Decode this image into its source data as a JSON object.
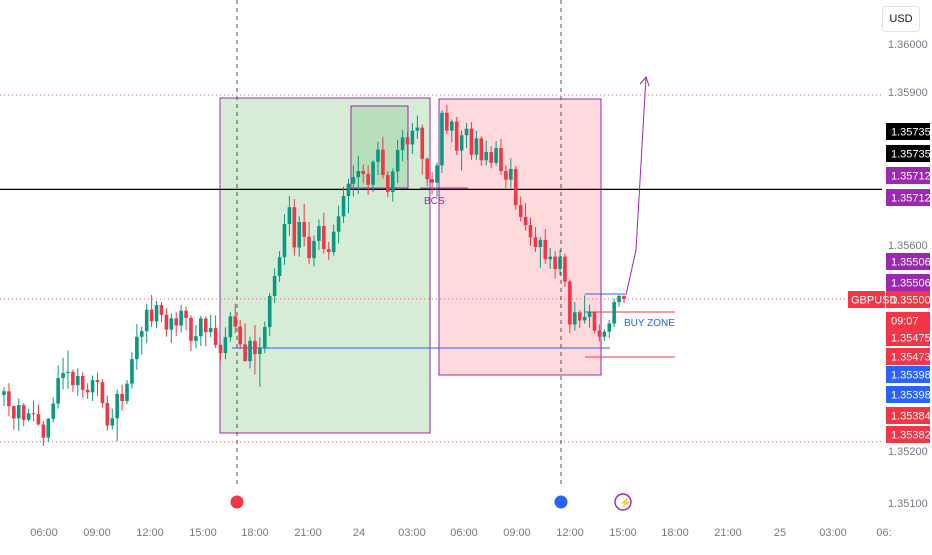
{
  "currency": "USD",
  "chart_data": {
    "type": "candlestick",
    "symbol": "GBPUSD",
    "ylim": [
      1.3507,
      1.3605
    ],
    "price_ticks": [
      "1.36000",
      "1.35900",
      "1.35600",
      "1.35200",
      "1.35100"
    ],
    "time_ticks": [
      "06:00",
      "09:00",
      "12:00",
      "15:00",
      "18:00",
      "21:00",
      "24",
      "03:00",
      "06:00",
      "09:00",
      "12:00",
      "15:00",
      "18:00",
      "21:00",
      "25",
      "03:00",
      "06:"
    ],
    "price_tags": [
      {
        "label": "1.35735",
        "price": 1.35735,
        "color": "#000000"
      },
      {
        "label": "1.35735",
        "price": 1.35735,
        "color": "#000000"
      },
      {
        "label": "1.35712",
        "price": 1.35712,
        "color": "#9c27b0"
      },
      {
        "label": "1.35712",
        "price": 1.35712,
        "color": "#9c27b0"
      },
      {
        "label": "1.35506",
        "price": 1.35506,
        "color": "#9c27b0"
      },
      {
        "label": "1.35506",
        "price": 1.35506,
        "color": "#9c27b0"
      },
      {
        "label": "1.35500",
        "price": 1.355,
        "color": "#f23645"
      },
      {
        "label": "09:07",
        "price": null,
        "color": "#f23645"
      },
      {
        "label": "1.35475",
        "price": 1.35475,
        "color": "#f23645"
      },
      {
        "label": "1.35473",
        "price": 1.35473,
        "color": "#f23645"
      },
      {
        "label": "1.35398",
        "price": 1.35398,
        "color": "#2962ff"
      },
      {
        "label": "1.35398",
        "price": 1.35398,
        "color": "#2962ff"
      },
      {
        "label": "1.35384",
        "price": 1.35384,
        "color": "#f23645"
      },
      {
        "label": "1.35382",
        "price": 1.35382,
        "color": "#f23645"
      }
    ],
    "symbol_tag": "GBPUSD",
    "annotations": {
      "bcs": "BCS",
      "buy_zone": "BUY ZONE"
    },
    "horizontal_levels": {
      "black": 1.35715,
      "blue": 1.35475,
      "dotted_top": 1.359,
      "dotted_bottom": 1.3522,
      "current": 1.355
    },
    "zones": [
      {
        "name": "green",
        "color": "#c8e6c9",
        "price_top": 1.35905,
        "price_bottom": 1.3533
      },
      {
        "name": "red",
        "color": "#ffcdd2",
        "price_top": 1.35905,
        "price_bottom": 1.35435
      }
    ],
    "candles": [
      [
        1.35312,
        1.35327,
        1.3529,
        1.35319
      ],
      [
        1.35319,
        1.35335,
        1.3527,
        1.3529
      ],
      [
        1.3529,
        1.35291,
        1.35244,
        1.35266
      ],
      [
        1.35266,
        1.35305,
        1.35241,
        1.35292
      ],
      [
        1.35292,
        1.35296,
        1.3525,
        1.35263
      ],
      [
        1.35263,
        1.35285,
        1.3526,
        1.35276
      ],
      [
        1.35276,
        1.35301,
        1.3526,
        1.35274
      ],
      [
        1.35274,
        1.35293,
        1.35252,
        1.35254
      ],
      [
        1.35254,
        1.35261,
        1.35212,
        1.35228
      ],
      [
        1.35228,
        1.35267,
        1.35219,
        1.35265
      ],
      [
        1.35265,
        1.35307,
        1.35258,
        1.35295
      ],
      [
        1.35295,
        1.3537,
        1.35285,
        1.35345
      ],
      [
        1.35345,
        1.35385,
        1.35323,
        1.35355
      ],
      [
        1.35355,
        1.35399,
        1.35324,
        1.35357
      ],
      [
        1.35357,
        1.35362,
        1.35318,
        1.35331
      ],
      [
        1.35331,
        1.35364,
        1.3531,
        1.35349
      ],
      [
        1.35349,
        1.35356,
        1.35307,
        1.35322
      ],
      [
        1.35322,
        1.35335,
        1.35304,
        1.35317
      ],
      [
        1.35317,
        1.3535,
        1.353,
        1.35341
      ],
      [
        1.35341,
        1.35356,
        1.3531,
        1.35337
      ],
      [
        1.35337,
        1.35343,
        1.35287,
        1.35296
      ],
      [
        1.35296,
        1.35311,
        1.35242,
        1.35252
      ],
      [
        1.35252,
        1.35285,
        1.35244,
        1.35266
      ],
      [
        1.35266,
        1.35322,
        1.35221,
        1.35314
      ],
      [
        1.35314,
        1.35332,
        1.35281,
        1.353
      ],
      [
        1.353,
        1.35341,
        1.35294,
        1.35334
      ],
      [
        1.35334,
        1.35396,
        1.35324,
        1.35382
      ],
      [
        1.35382,
        1.35451,
        1.35361,
        1.35426
      ],
      [
        1.35426,
        1.35446,
        1.35391,
        1.35437
      ],
      [
        1.35437,
        1.35491,
        1.35413,
        1.35479
      ],
      [
        1.35479,
        1.35508,
        1.35445,
        1.35456
      ],
      [
        1.35456,
        1.35496,
        1.35443,
        1.35488
      ],
      [
        1.35488,
        1.35494,
        1.35455,
        1.35469
      ],
      [
        1.35469,
        1.35482,
        1.35426,
        1.3544
      ],
      [
        1.3544,
        1.35472,
        1.35414,
        1.35462
      ],
      [
        1.35462,
        1.35474,
        1.35427,
        1.35448
      ],
      [
        1.35448,
        1.35489,
        1.35434,
        1.35477
      ],
      [
        1.35477,
        1.35485,
        1.35439,
        1.35463
      ],
      [
        1.35463,
        1.35468,
        1.35398,
        1.35418
      ],
      [
        1.35418,
        1.35449,
        1.35403,
        1.35427
      ],
      [
        1.35427,
        1.35467,
        1.35408,
        1.35462
      ],
      [
        1.35462,
        1.35466,
        1.35407,
        1.35435
      ],
      [
        1.35435,
        1.35469,
        1.35425,
        1.35443
      ],
      [
        1.35443,
        1.35468,
        1.35404,
        1.3541
      ],
      [
        1.3541,
        1.35412,
        1.35379,
        1.35394
      ],
      [
        1.35394,
        1.35444,
        1.35382,
        1.35425
      ],
      [
        1.35425,
        1.35474,
        1.35416,
        1.35466
      ],
      [
        1.35466,
        1.35491,
        1.35433,
        1.35446
      ],
      [
        1.35446,
        1.35459,
        1.35402,
        1.35411
      ],
      [
        1.35411,
        1.35452,
        1.35378,
        1.35378
      ],
      [
        1.35378,
        1.35426,
        1.35364,
        1.35418
      ],
      [
        1.35418,
        1.35449,
        1.35352,
        1.35392
      ],
      [
        1.35392,
        1.35425,
        1.35328,
        1.35405
      ],
      [
        1.35405,
        1.35456,
        1.35394,
        1.35445
      ],
      [
        1.35445,
        1.35512,
        1.35428,
        1.35506
      ],
      [
        1.35506,
        1.3556,
        1.35492,
        1.35545
      ],
      [
        1.35545,
        1.35594,
        1.35533,
        1.35582
      ],
      [
        1.35582,
        1.35666,
        1.35567,
        1.35647
      ],
      [
        1.35647,
        1.35702,
        1.35624,
        1.3568
      ],
      [
        1.3568,
        1.35696,
        1.35585,
        1.35601
      ],
      [
        1.35601,
        1.35662,
        1.35583,
        1.35651
      ],
      [
        1.35651,
        1.35687,
        1.35603,
        1.35622
      ],
      [
        1.35622,
        1.35651,
        1.35568,
        1.3558
      ],
      [
        1.3558,
        1.35625,
        1.35564,
        1.35614
      ],
      [
        1.35614,
        1.35656,
        1.35596,
        1.35643
      ],
      [
        1.35643,
        1.35669,
        1.35589,
        1.35598
      ],
      [
        1.35598,
        1.35612,
        1.35577,
        1.35592
      ],
      [
        1.35592,
        1.35646,
        1.35585,
        1.35632
      ],
      [
        1.35632,
        1.35683,
        1.35609,
        1.35662
      ],
      [
        1.35662,
        1.3572,
        1.35649,
        1.35702
      ],
      [
        1.35702,
        1.35736,
        1.35668,
        1.35726
      ],
      [
        1.35726,
        1.35762,
        1.35701,
        1.35739
      ],
      [
        1.35739,
        1.35781,
        1.35706,
        1.35751
      ],
      [
        1.35751,
        1.35764,
        1.35727,
        1.35745
      ],
      [
        1.35745,
        1.35762,
        1.35704,
        1.35724
      ],
      [
        1.35724,
        1.35772,
        1.3571,
        1.35769
      ],
      [
        1.35769,
        1.35808,
        1.35743,
        1.35793
      ],
      [
        1.35793,
        1.35818,
        1.35736,
        1.35743
      ],
      [
        1.35743,
        1.35751,
        1.357,
        1.3571
      ],
      [
        1.3571,
        1.35756,
        1.35691,
        1.3575
      ],
      [
        1.3575,
        1.35812,
        1.35727,
        1.35792
      ],
      [
        1.35792,
        1.35831,
        1.3577,
        1.35817
      ],
      [
        1.35817,
        1.35827,
        1.35773,
        1.35803
      ],
      [
        1.35803,
        1.35845,
        1.35785,
        1.3583
      ],
      [
        1.3583,
        1.3586,
        1.35814,
        1.35836
      ],
      [
        1.35836,
        1.35842,
        1.35744,
        1.35775
      ],
      [
        1.35775,
        1.35778,
        1.35721,
        1.35735
      ],
      [
        1.35735,
        1.35749,
        1.35705,
        1.35728
      ],
      [
        1.35728,
        1.35768,
        1.357,
        1.35762
      ],
      [
        1.35762,
        1.3587,
        1.35747,
        1.35865
      ],
      [
        1.35865,
        1.35881,
        1.35823,
        1.3583
      ],
      [
        1.3583,
        1.35852,
        1.35808,
        1.35848
      ],
      [
        1.35848,
        1.35857,
        1.35782,
        1.35791
      ],
      [
        1.35791,
        1.3583,
        1.35752,
        1.35821
      ],
      [
        1.35821,
        1.35845,
        1.35796,
        1.35834
      ],
      [
        1.35834,
        1.35847,
        1.35773,
        1.35783
      ],
      [
        1.35783,
        1.3583,
        1.35773,
        1.35815
      ],
      [
        1.35815,
        1.35819,
        1.35761,
        1.35772
      ],
      [
        1.35772,
        1.35811,
        1.35762,
        1.35788
      ],
      [
        1.35788,
        1.358,
        1.35757,
        1.35767
      ],
      [
        1.35767,
        1.3581,
        1.35761,
        1.35796
      ],
      [
        1.35796,
        1.35814,
        1.35743,
        1.35751
      ],
      [
        1.35751,
        1.35762,
        1.35717,
        1.35734
      ],
      [
        1.35734,
        1.35776,
        1.35718,
        1.35755
      ],
      [
        1.35755,
        1.35761,
        1.35675,
        1.35684
      ],
      [
        1.35684,
        1.35701,
        1.35652,
        1.35661
      ],
      [
        1.35661,
        1.35688,
        1.35634,
        1.35645
      ],
      [
        1.35645,
        1.3566,
        1.35604,
        1.35621
      ],
      [
        1.35621,
        1.35641,
        1.35592,
        1.35602
      ],
      [
        1.35602,
        1.35622,
        1.35561,
        1.35616
      ],
      [
        1.35616,
        1.35637,
        1.35569,
        1.35578
      ],
      [
        1.35578,
        1.356,
        1.35559,
        1.35583
      ],
      [
        1.35583,
        1.35594,
        1.3554,
        1.35559
      ],
      [
        1.35559,
        1.35596,
        1.35547,
        1.35583
      ],
      [
        1.35583,
        1.35589,
        1.35524,
        1.35534
      ],
      [
        1.35534,
        1.35538,
        1.35433,
        1.3545
      ],
      [
        1.3545,
        1.35494,
        1.35438,
        1.35474
      ],
      [
        1.35474,
        1.35478,
        1.35443,
        1.35458
      ],
      [
        1.35458,
        1.35507,
        1.35452,
        1.35465
      ],
      [
        1.35465,
        1.35489,
        1.35444,
        1.35475
      ],
      [
        1.35475,
        1.35475,
        1.35433,
        1.35438
      ],
      [
        1.35438,
        1.3545,
        1.35417,
        1.35426
      ],
      [
        1.35426,
        1.35441,
        1.35418,
        1.35436
      ],
      [
        1.35436,
        1.35459,
        1.35423,
        1.35452
      ],
      [
        1.35452,
        1.35501,
        1.35445,
        1.35494
      ],
      [
        1.35494,
        1.35508,
        1.35485,
        1.35506
      ],
      [
        1.35506,
        1.35507,
        1.35492,
        1.355
      ]
    ]
  }
}
